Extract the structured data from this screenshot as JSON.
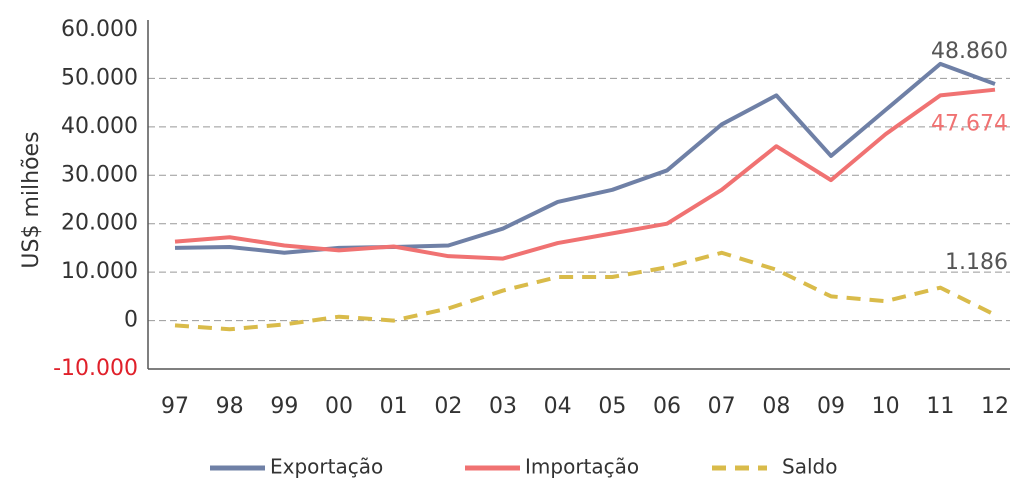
{
  "chart_data": {
    "type": "line",
    "y_label": "US$  milhões",
    "categories": [
      "97",
      "98",
      "99",
      "00",
      "01",
      "02",
      "03",
      "04",
      "05",
      "06",
      "07",
      "08",
      "09",
      "10",
      "11",
      "12"
    ],
    "series": [
      {
        "name": "Exportação",
        "color": "#6f80a6",
        "dashed": false,
        "value_label_color": "#555555",
        "values": [
          15000,
          15200,
          14000,
          15000,
          15200,
          15500,
          19000,
          24500,
          27000,
          31000,
          40500,
          46500,
          34000,
          43500,
          53000,
          48860
        ],
        "value_labels": [
          null,
          null,
          null,
          null,
          null,
          null,
          null,
          null,
          null,
          null,
          null,
          null,
          null,
          null,
          null,
          "48.860"
        ]
      },
      {
        "name": "Importação",
        "color": "#f07272",
        "dashed": false,
        "value_label_color": "#f07272",
        "values": [
          16300,
          17200,
          15500,
          14500,
          15300,
          13300,
          12800,
          16000,
          18000,
          20000,
          27000,
          36000,
          29000,
          38500,
          46500,
          47674
        ],
        "value_labels": [
          null,
          null,
          null,
          null,
          null,
          null,
          null,
          null,
          null,
          null,
          null,
          null,
          null,
          null,
          null,
          "47.674"
        ]
      },
      {
        "name": "Saldo",
        "color": "#d9bb4a",
        "dashed": true,
        "value_label_color": "#555555",
        "values": [
          -1000,
          -1800,
          -800,
          800,
          0,
          2500,
          6200,
          9000,
          9000,
          11000,
          14000,
          10500,
          5000,
          4000,
          6800,
          1186
        ],
        "value_labels": [
          null,
          null,
          null,
          null,
          null,
          null,
          null,
          null,
          null,
          null,
          null,
          null,
          null,
          null,
          null,
          "1.186"
        ]
      }
    ],
    "ylim": [
      -10000,
      60000
    ],
    "yticks": [
      {
        "value": -10000,
        "label": "-10.000"
      },
      0,
      {
        "value": 10000,
        "label": "10.000"
      },
      {
        "value": 20000,
        "label": "20.000"
      },
      {
        "value": 30000,
        "label": "30.000"
      },
      {
        "value": 40000,
        "label": "40.000"
      },
      {
        "value": 50000,
        "label": "50.000"
      },
      {
        "value": 60000,
        "label": "60.000"
      }
    ],
    "negative_tick_color": "#e0202a",
    "grid": true,
    "legend": "bottom"
  }
}
